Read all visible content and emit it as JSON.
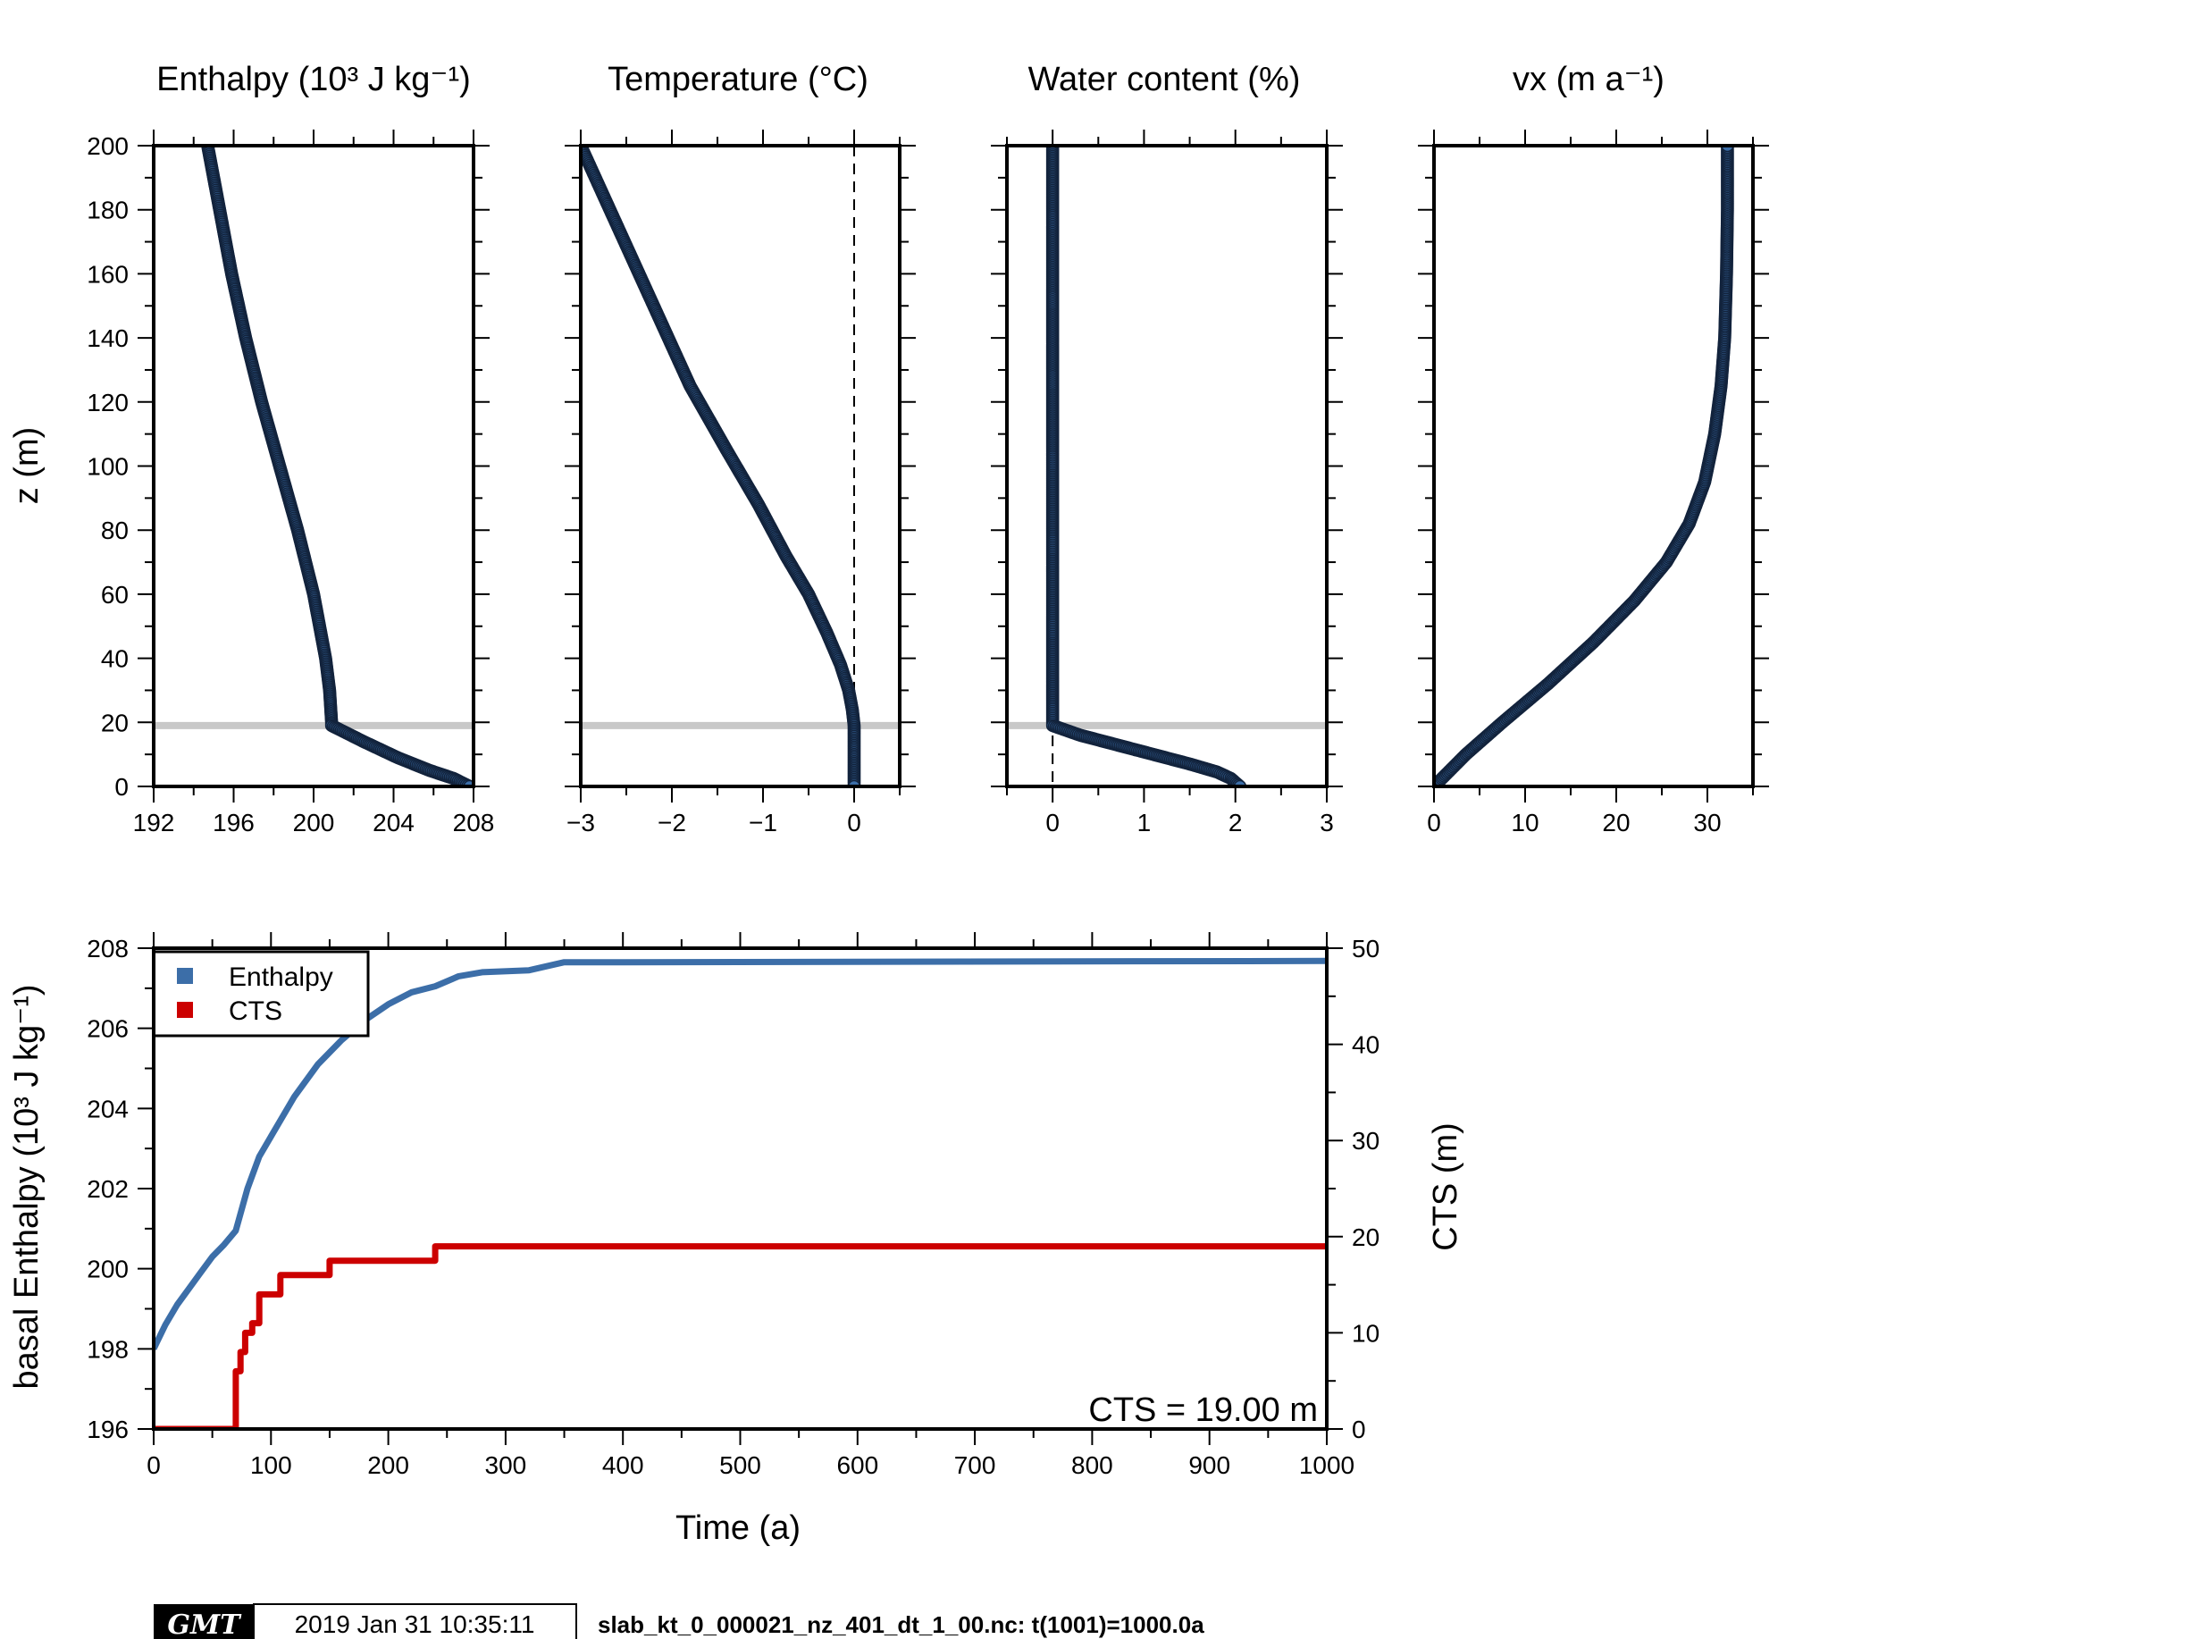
{
  "chart_data": [
    {
      "type": "scatter",
      "title": "Enthalpy (10³ J kg⁻¹)",
      "ylabel": "z (m)",
      "xlim": [
        192,
        208
      ],
      "ylim": [
        0,
        200
      ],
      "xticks": [
        "192",
        "196",
        "200",
        "204",
        "208"
      ],
      "yticks": [
        "0",
        "20",
        "40",
        "60",
        "80",
        "100",
        "120",
        "140",
        "160",
        "180",
        "200"
      ],
      "cts_line": 19,
      "series": [
        {
          "color": "#3c6ea8",
          "points": [
            [
              194.7,
              200
            ],
            [
              195.3,
              180
            ],
            [
              195.9,
              160
            ],
            [
              196.6,
              140
            ],
            [
              197.4,
              120
            ],
            [
              198.3,
              100
            ],
            [
              199.2,
              80
            ],
            [
              200.0,
              60
            ],
            [
              200.6,
              40
            ],
            [
              200.8,
              30
            ],
            [
              200.9,
              20
            ],
            [
              200.9,
              19
            ],
            [
              202.5,
              14
            ],
            [
              204.2,
              9
            ],
            [
              205.8,
              5
            ],
            [
              207.0,
              2.5
            ],
            [
              207.8,
              0
            ]
          ]
        }
      ]
    },
    {
      "type": "scatter",
      "title": "Temperature (°C)",
      "xlim": [
        -3,
        0.5
      ],
      "ylim": [
        0,
        200
      ],
      "xticks": [
        "−3",
        "−2",
        "−1",
        "0"
      ],
      "dashed_x": 0,
      "cts_line": 19,
      "series": [
        {
          "color": "#3c6ea8",
          "points": [
            [
              -3.0,
              200
            ],
            [
              -2.6,
              175
            ],
            [
              -2.2,
              150
            ],
            [
              -1.8,
              125
            ],
            [
              -1.4,
              105
            ],
            [
              -1.05,
              88
            ],
            [
              -0.75,
              72
            ],
            [
              -0.5,
              60
            ],
            [
              -0.3,
              48
            ],
            [
              -0.15,
              38
            ],
            [
              -0.06,
              30
            ],
            [
              -0.02,
              24
            ],
            [
              0,
              19
            ],
            [
              0,
              10
            ],
            [
              0,
              0
            ]
          ]
        }
      ]
    },
    {
      "type": "scatter",
      "title": "Water content (%)",
      "xlim": [
        -0.5,
        3
      ],
      "ylim": [
        0,
        200
      ],
      "xticks": [
        "0",
        "1",
        "2",
        "3"
      ],
      "dashed_x": 0,
      "cts_line": 19,
      "series": [
        {
          "color": "#3c6ea8",
          "points": [
            [
              0,
              200
            ],
            [
              0,
              100
            ],
            [
              0,
              19
            ],
            [
              0.3,
              16
            ],
            [
              0.7,
              13
            ],
            [
              1.1,
              10
            ],
            [
              1.5,
              7
            ],
            [
              1.8,
              4.5
            ],
            [
              1.95,
              2.5
            ],
            [
              2.05,
              0
            ]
          ]
        }
      ]
    },
    {
      "type": "scatter",
      "title": "vx (m a⁻¹)",
      "xlim": [
        0,
        35
      ],
      "ylim": [
        0,
        200
      ],
      "xticks": [
        "0",
        "10",
        "20",
        "30"
      ],
      "series": [
        {
          "color": "#3c6ea8",
          "points": [
            [
              0,
              0
            ],
            [
              3.5,
              10
            ],
            [
              7.5,
              20
            ],
            [
              12.5,
              32
            ],
            [
              17.5,
              45
            ],
            [
              22,
              58
            ],
            [
              25.5,
              70
            ],
            [
              28,
              82
            ],
            [
              29.7,
              95
            ],
            [
              30.8,
              110
            ],
            [
              31.5,
              125
            ],
            [
              31.9,
              140
            ],
            [
              32.1,
              160
            ],
            [
              32.2,
              180
            ],
            [
              32.2,
              200
            ]
          ]
        }
      ]
    },
    {
      "type": "line",
      "xlabel": "Time (a)",
      "ylabel": "basal Enthalpy (10³ J kg⁻¹)",
      "y2label": "CTS (m)",
      "xlim": [
        0,
        1000
      ],
      "ylim": [
        196,
        208
      ],
      "y2lim": [
        0,
        50
      ],
      "xticks": [
        "0",
        "100",
        "200",
        "300",
        "400",
        "500",
        "600",
        "700",
        "800",
        "900",
        "1000"
      ],
      "yticks": [
        "196",
        "198",
        "200",
        "202",
        "204",
        "206",
        "208"
      ],
      "y2ticks": [
        "0",
        "10",
        "20",
        "30",
        "40",
        "50"
      ],
      "legend_position": "top-left",
      "annotation": "CTS = 19.00 m",
      "series": [
        {
          "name": "Enthalpy",
          "color": "#3c6ea8",
          "axis": "left",
          "points": [
            [
              0,
              198.0
            ],
            [
              10,
              198.6
            ],
            [
              20,
              199.1
            ],
            [
              30,
              199.5
            ],
            [
              40,
              199.9
            ],
            [
              50,
              200.3
            ],
            [
              60,
              200.6
            ],
            [
              70,
              200.95
            ],
            [
              80,
              202.0
            ],
            [
              90,
              202.8
            ],
            [
              100,
              203.3
            ],
            [
              120,
              204.3
            ],
            [
              140,
              205.1
            ],
            [
              160,
              205.7
            ],
            [
              180,
              206.2
            ],
            [
              200,
              206.6
            ],
            [
              220,
              206.9
            ],
            [
              240,
              207.05
            ],
            [
              260,
              207.3
            ],
            [
              280,
              207.4
            ],
            [
              320,
              207.45
            ],
            [
              350,
              207.65
            ],
            [
              400,
              207.65
            ],
            [
              1000,
              207.68
            ]
          ]
        },
        {
          "name": "CTS",
          "color": "#cc0000",
          "axis": "right",
          "step": true,
          "points": [
            [
              0,
              0
            ],
            [
              70,
              0
            ],
            [
              70,
              6
            ],
            [
              74,
              6
            ],
            [
              74,
              8
            ],
            [
              78,
              8
            ],
            [
              78,
              10
            ],
            [
              84,
              10
            ],
            [
              84,
              11
            ],
            [
              90,
              11
            ],
            [
              90,
              14
            ],
            [
              108,
              14
            ],
            [
              108,
              16
            ],
            [
              150,
              16
            ],
            [
              150,
              17.5
            ],
            [
              240,
              17.5
            ],
            [
              240,
              19
            ],
            [
              1000,
              19
            ]
          ]
        }
      ]
    }
  ],
  "footer": {
    "logo": "GMT",
    "timestamp": "2019 Jan 31 10:35:11",
    "filename": "slab_kt_0_000021_nz_401_dt_1_00.nc: t(1001)=1000.0a"
  }
}
